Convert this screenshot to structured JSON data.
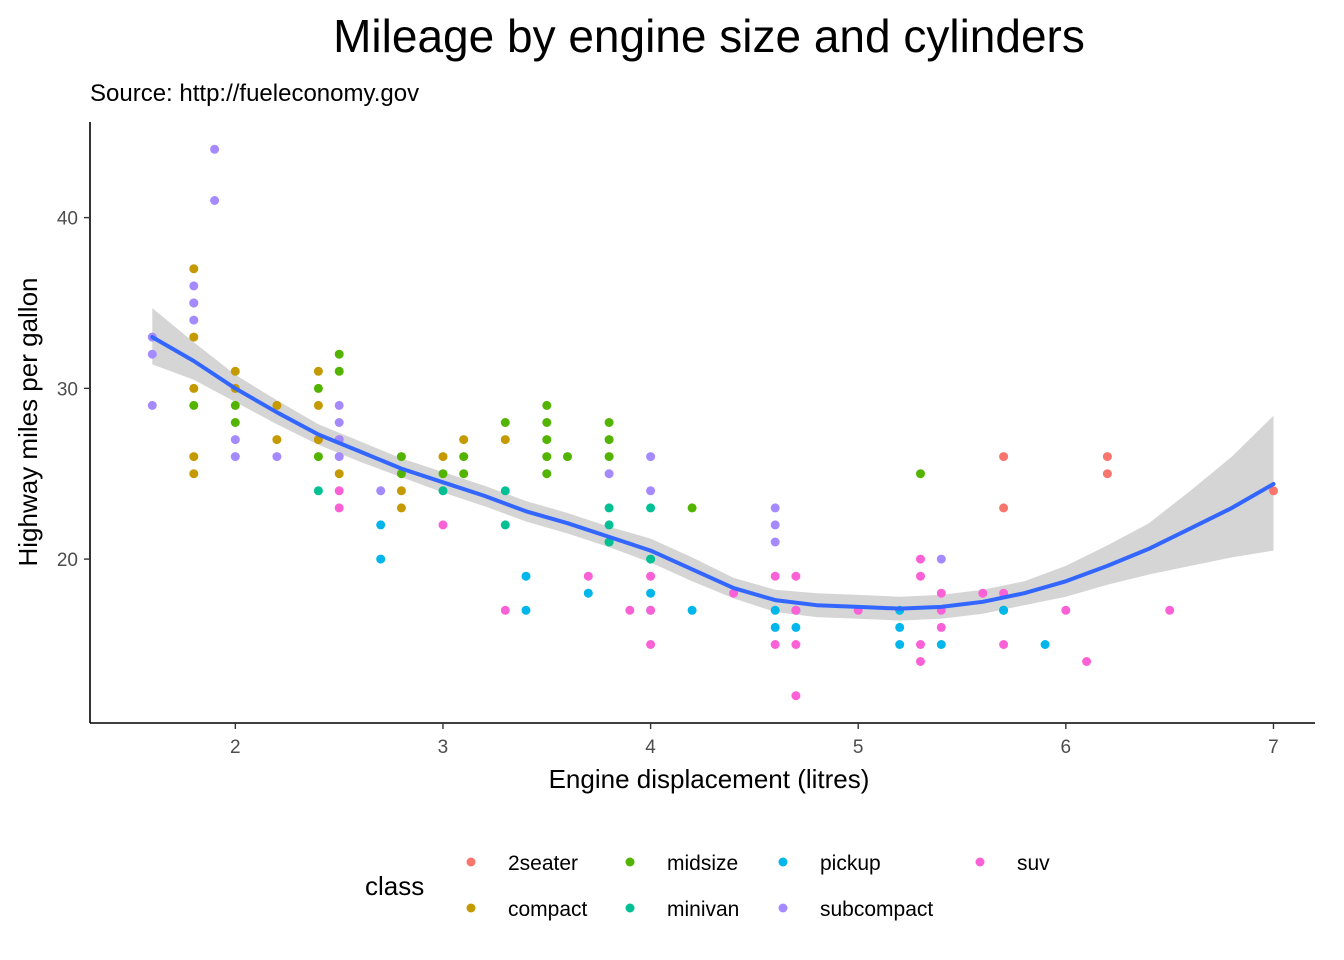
{
  "chart_data": {
    "type": "scatter",
    "title": "Mileage by engine size and cylinders",
    "subtitle": "Source: http://fueleconomy.gov",
    "xlabel": "Engine displacement (litres)",
    "ylabel": "Highway miles per gallon",
    "xlim": [
      1.3,
      7.2
    ],
    "ylim": [
      10.4,
      45.6
    ],
    "x_ticks": [
      2,
      3,
      4,
      5,
      6,
      7
    ],
    "y_ticks": [
      20,
      30,
      40
    ],
    "grid": false,
    "legend": {
      "title": "class",
      "placement": "bottom",
      "entries": [
        {
          "name": "2seater",
          "color": "#F8766D"
        },
        {
          "name": "compact",
          "color": "#C49A00"
        },
        {
          "name": "midsize",
          "color": "#53B400"
        },
        {
          "name": "minivan",
          "color": "#00C094"
        },
        {
          "name": "pickup",
          "color": "#00B6EB"
        },
        {
          "name": "subcompact",
          "color": "#A58AFF"
        },
        {
          "name": "suv",
          "color": "#FB61D7"
        }
      ]
    },
    "series": [
      {
        "name": "2seater",
        "color": "#F8766D",
        "points": [
          [
            5.7,
            26
          ],
          [
            5.7,
            23
          ],
          [
            6.2,
            26
          ],
          [
            6.2,
            25
          ],
          [
            7.0,
            24
          ]
        ]
      },
      {
        "name": "compact",
        "color": "#C49A00",
        "points": [
          [
            1.8,
            37
          ],
          [
            1.8,
            35
          ],
          [
            1.8,
            33
          ],
          [
            1.8,
            30
          ],
          [
            1.8,
            26
          ],
          [
            1.8,
            25
          ],
          [
            2.0,
            31
          ],
          [
            2.0,
            30
          ],
          [
            2.2,
            29
          ],
          [
            2.2,
            27
          ],
          [
            2.4,
            31
          ],
          [
            2.4,
            29
          ],
          [
            2.4,
            27
          ],
          [
            2.5,
            27
          ],
          [
            2.5,
            25
          ],
          [
            2.8,
            24
          ],
          [
            2.8,
            23
          ],
          [
            3.0,
            26
          ],
          [
            3.1,
            27
          ],
          [
            3.3,
            27
          ]
        ]
      },
      {
        "name": "midsize",
        "color": "#53B400",
        "points": [
          [
            1.8,
            29
          ],
          [
            2.0,
            29
          ],
          [
            2.0,
            28
          ],
          [
            2.4,
            30
          ],
          [
            2.4,
            26
          ],
          [
            2.5,
            32
          ],
          [
            2.5,
            31
          ],
          [
            2.8,
            26
          ],
          [
            2.8,
            25
          ],
          [
            3.0,
            25
          ],
          [
            3.1,
            26
          ],
          [
            3.1,
            25
          ],
          [
            3.3,
            28
          ],
          [
            3.5,
            29
          ],
          [
            3.5,
            28
          ],
          [
            3.5,
            27
          ],
          [
            3.5,
            26
          ],
          [
            3.5,
            25
          ],
          [
            3.6,
            26
          ],
          [
            3.8,
            28
          ],
          [
            3.8,
            27
          ],
          [
            3.8,
            26
          ],
          [
            3.8,
            21
          ],
          [
            4.2,
            23
          ],
          [
            5.3,
            25
          ]
        ]
      },
      {
        "name": "minivan",
        "color": "#00C094",
        "points": [
          [
            2.4,
            24
          ],
          [
            3.0,
            24
          ],
          [
            3.3,
            24
          ],
          [
            3.3,
            22
          ],
          [
            3.8,
            23
          ],
          [
            3.8,
            22
          ],
          [
            3.8,
            21
          ],
          [
            4.0,
            23
          ],
          [
            4.0,
            20
          ],
          [
            5.7,
            17
          ]
        ]
      },
      {
        "name": "pickup",
        "color": "#00B6EB",
        "points": [
          [
            2.7,
            22
          ],
          [
            2.7,
            20
          ],
          [
            3.4,
            19
          ],
          [
            3.4,
            17
          ],
          [
            3.7,
            18
          ],
          [
            4.0,
            18
          ],
          [
            4.0,
            17
          ],
          [
            4.2,
            17
          ],
          [
            4.6,
            17
          ],
          [
            4.6,
            16
          ],
          [
            4.7,
            17
          ],
          [
            4.7,
            16
          ],
          [
            5.2,
            17
          ],
          [
            5.2,
            16
          ],
          [
            5.2,
            15
          ],
          [
            5.4,
            15
          ],
          [
            5.7,
            17
          ],
          [
            5.9,
            15
          ]
        ]
      },
      {
        "name": "subcompact",
        "color": "#A58AFF",
        "points": [
          [
            1.6,
            33
          ],
          [
            1.6,
            32
          ],
          [
            1.6,
            29
          ],
          [
            1.8,
            36
          ],
          [
            1.8,
            35
          ],
          [
            1.8,
            34
          ],
          [
            1.9,
            44
          ],
          [
            1.9,
            41
          ],
          [
            2.0,
            27
          ],
          [
            2.0,
            26
          ],
          [
            2.2,
            26
          ],
          [
            2.5,
            29
          ],
          [
            2.5,
            28
          ],
          [
            2.5,
            27
          ],
          [
            2.5,
            26
          ],
          [
            2.7,
            24
          ],
          [
            3.8,
            25
          ],
          [
            4.0,
            26
          ],
          [
            4.0,
            24
          ],
          [
            4.6,
            23
          ],
          [
            4.6,
            22
          ],
          [
            4.6,
            21
          ],
          [
            5.4,
            20
          ]
        ]
      },
      {
        "name": "suv",
        "color": "#FB61D7",
        "points": [
          [
            2.5,
            24
          ],
          [
            2.5,
            23
          ],
          [
            3.0,
            22
          ],
          [
            3.3,
            17
          ],
          [
            3.7,
            19
          ],
          [
            3.9,
            17
          ],
          [
            4.0,
            19
          ],
          [
            4.0,
            17
          ],
          [
            4.0,
            15
          ],
          [
            4.4,
            18
          ],
          [
            4.6,
            19
          ],
          [
            4.6,
            15
          ],
          [
            4.7,
            19
          ],
          [
            4.7,
            17
          ],
          [
            4.7,
            15
          ],
          [
            4.7,
            12
          ],
          [
            5.0,
            17
          ],
          [
            5.3,
            20
          ],
          [
            5.3,
            19
          ],
          [
            5.3,
            15
          ],
          [
            5.3,
            14
          ],
          [
            5.4,
            18
          ],
          [
            5.4,
            17
          ],
          [
            5.4,
            16
          ],
          [
            5.6,
            18
          ],
          [
            5.7,
            18
          ],
          [
            5.7,
            15
          ],
          [
            6.0,
            17
          ],
          [
            6.1,
            14
          ],
          [
            6.5,
            17
          ]
        ]
      }
    ],
    "smooth": {
      "color": "#3366FF",
      "band_color": "#D3D3D3",
      "x": [
        1.6,
        1.8,
        2.0,
        2.2,
        2.4,
        2.6,
        2.8,
        3.0,
        3.2,
        3.4,
        3.6,
        3.8,
        4.0,
        4.2,
        4.4,
        4.6,
        4.8,
        5.0,
        5.2,
        5.4,
        5.6,
        5.8,
        6.0,
        6.2,
        6.4,
        6.6,
        6.8,
        7.0
      ],
      "y": [
        33.0,
        31.6,
        30.0,
        28.6,
        27.3,
        26.3,
        25.3,
        24.5,
        23.7,
        22.8,
        22.1,
        21.3,
        20.5,
        19.4,
        18.3,
        17.6,
        17.3,
        17.2,
        17.1,
        17.2,
        17.5,
        18.0,
        18.7,
        19.6,
        20.6,
        21.8,
        23.0,
        24.4
      ],
      "lower": [
        31.4,
        30.5,
        29.2,
        27.9,
        26.7,
        25.7,
        24.8,
        23.9,
        23.1,
        22.2,
        21.5,
        20.7,
        19.8,
        18.7,
        17.7,
        16.9,
        16.6,
        16.5,
        16.4,
        16.5,
        16.8,
        17.3,
        17.8,
        18.5,
        19.1,
        19.6,
        20.1,
        20.5
      ],
      "upper": [
        34.7,
        32.7,
        30.8,
        29.3,
        27.9,
        26.9,
        25.9,
        25.1,
        24.3,
        23.4,
        22.7,
        21.9,
        21.2,
        20.1,
        18.9,
        18.2,
        18.0,
        17.9,
        17.8,
        17.9,
        18.2,
        18.7,
        19.6,
        20.8,
        22.1,
        24.0,
        26.0,
        28.4
      ]
    }
  }
}
